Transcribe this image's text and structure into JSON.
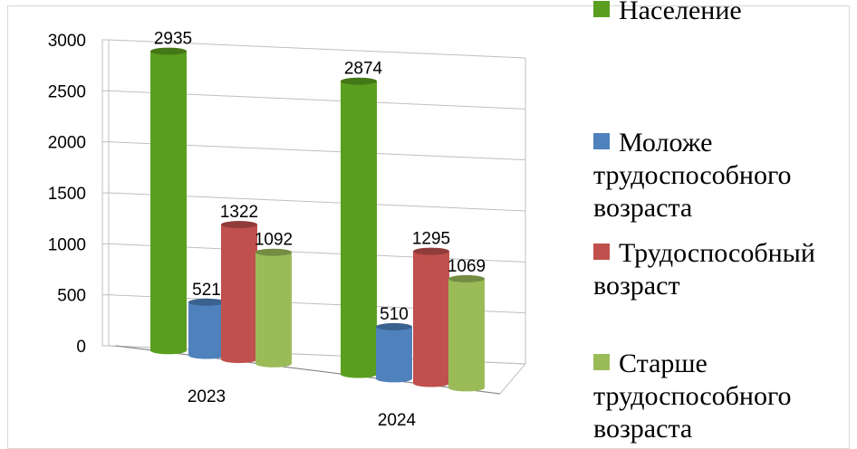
{
  "chart_data": {
    "type": "bar",
    "categories": [
      "2023",
      "2024"
    ],
    "series": [
      {
        "name": "Население",
        "values": [
          2935,
          2874
        ],
        "color": "#5a9e1f"
      },
      {
        "name": "Моложе трудоспособного возраста",
        "values": [
          521,
          510
        ],
        "color": "#4f81bd"
      },
      {
        "name": "Трудоспособный возраст",
        "values": [
          1322,
          1295
        ],
        "color": "#c0504d"
      },
      {
        "name": "Старше трудоспособного возраста",
        "values": [
          1092,
          1069
        ],
        "color": "#9bbb59"
      }
    ],
    "y_ticks": [
      "0",
      "500",
      "1000",
      "1500",
      "2000",
      "2500",
      "3000"
    ],
    "ylim": [
      0,
      3000
    ],
    "grid": true,
    "legend_position": "right",
    "style": "3d-cylinder",
    "legend": {
      "items": [
        {
          "text": "Население",
          "color": "#5a9e1f"
        },
        {
          "text": "Моложе трудоспособного возраста",
          "color": "#4f81bd"
        },
        {
          "text": "Трудоспособный возраст",
          "color": "#c0504d"
        },
        {
          "text": "Старше трудоспособного возраста",
          "color": "#9bbb59"
        }
      ]
    }
  }
}
